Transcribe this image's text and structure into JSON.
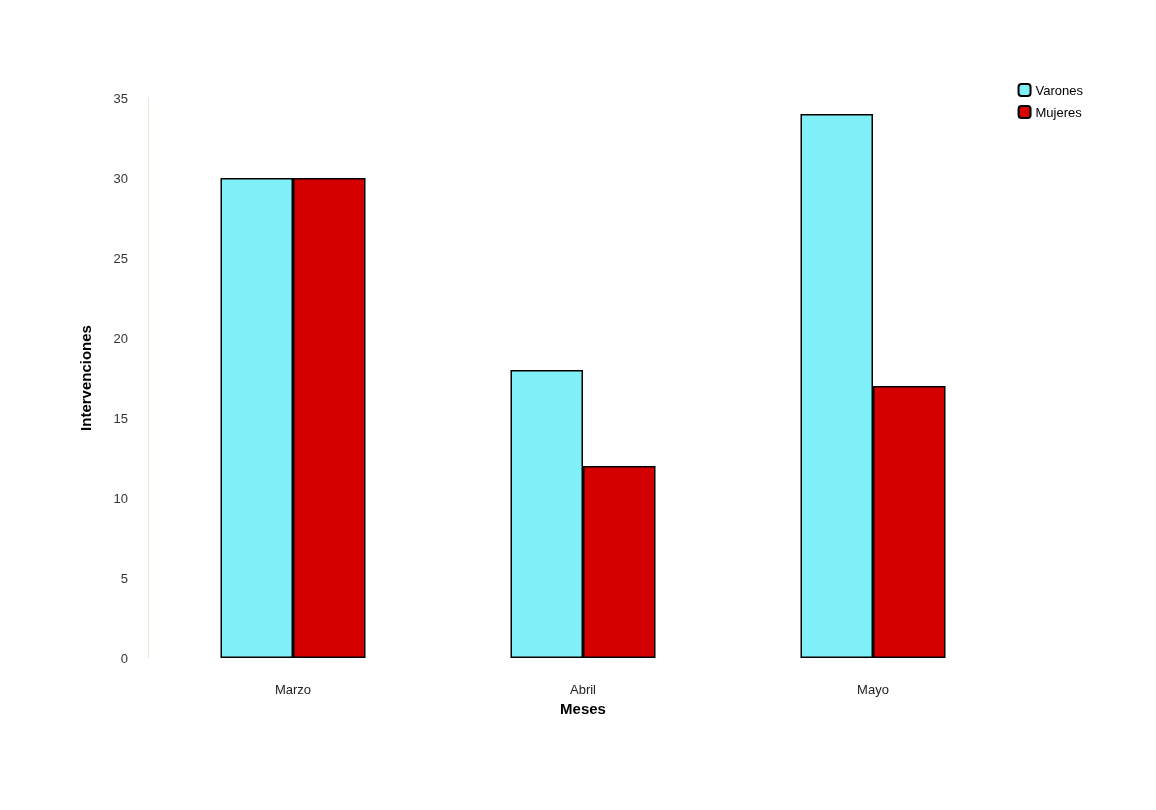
{
  "chart_data": {
    "type": "bar",
    "xlabel": "Meses",
    "ylabel": "Intervenciones",
    "categories": [
      "Marzo",
      "Abril",
      "Mayo"
    ],
    "series": [
      {
        "name": "Varones",
        "color": "#80f0f8",
        "values": [
          30,
          18,
          34
        ]
      },
      {
        "name": "Mujeres",
        "color": "#d40000",
        "values": [
          30,
          12,
          17
        ]
      }
    ],
    "ylim": [
      0,
      35
    ],
    "yticks": [
      0,
      5,
      10,
      15,
      20,
      25,
      30,
      35
    ],
    "legend": "top right",
    "grid": false
  }
}
